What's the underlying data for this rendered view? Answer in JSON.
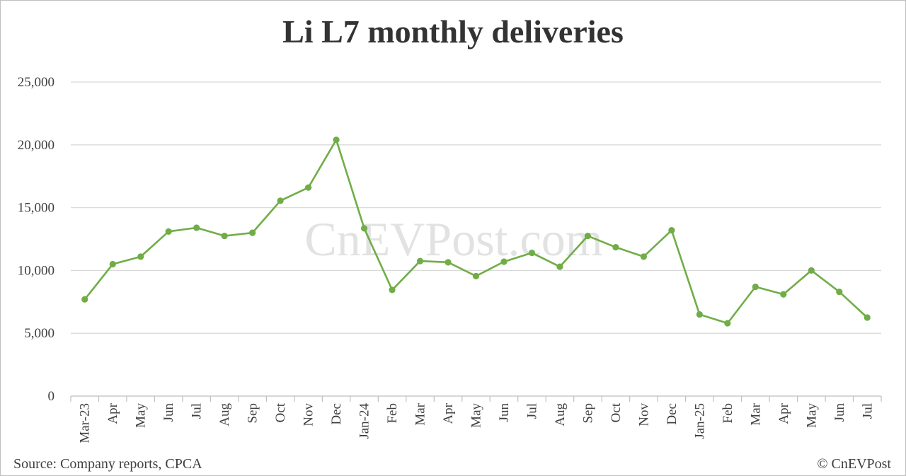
{
  "chart_data": {
    "type": "line",
    "title": "Li L7 monthly deliveries",
    "xlabel": "",
    "ylabel": "",
    "categories": [
      "Mar-23",
      "Apr",
      "May",
      "Jun",
      "Jul",
      "Aug",
      "Sep",
      "Oct",
      "Nov",
      "Dec",
      "Jan-24",
      "Feb",
      "Mar",
      "Apr",
      "May",
      "Jun",
      "Jul",
      "Aug",
      "Sep",
      "Oct",
      "Nov",
      "Dec",
      "Jan-25",
      "Feb",
      "Mar",
      "Apr",
      "May",
      "Jun",
      "Jul"
    ],
    "values": [
      7700,
      10500,
      11100,
      13100,
      13400,
      12750,
      13000,
      15550,
      16600,
      20400,
      13350,
      8450,
      10750,
      10650,
      9550,
      10700,
      11400,
      10300,
      12750,
      11850,
      11100,
      13200,
      6500,
      5800,
      8700,
      8100,
      10000,
      8300,
      6250
    ],
    "ylim": [
      0,
      25000
    ],
    "yticks": [
      0,
      5000,
      10000,
      15000,
      20000,
      25000
    ],
    "ytick_labels": [
      "0",
      "5,000",
      "10,000",
      "15,000",
      "20,000",
      "25,000"
    ],
    "grid": true,
    "line_color": "#70ad47",
    "gridline_color": "#d9d9d9",
    "axis_color": "#bfbfbf"
  },
  "watermark": "CnEVPost.com",
  "footer": {
    "source": "Source: Company reports, CPCA",
    "copyright": "© CnEVPost"
  }
}
